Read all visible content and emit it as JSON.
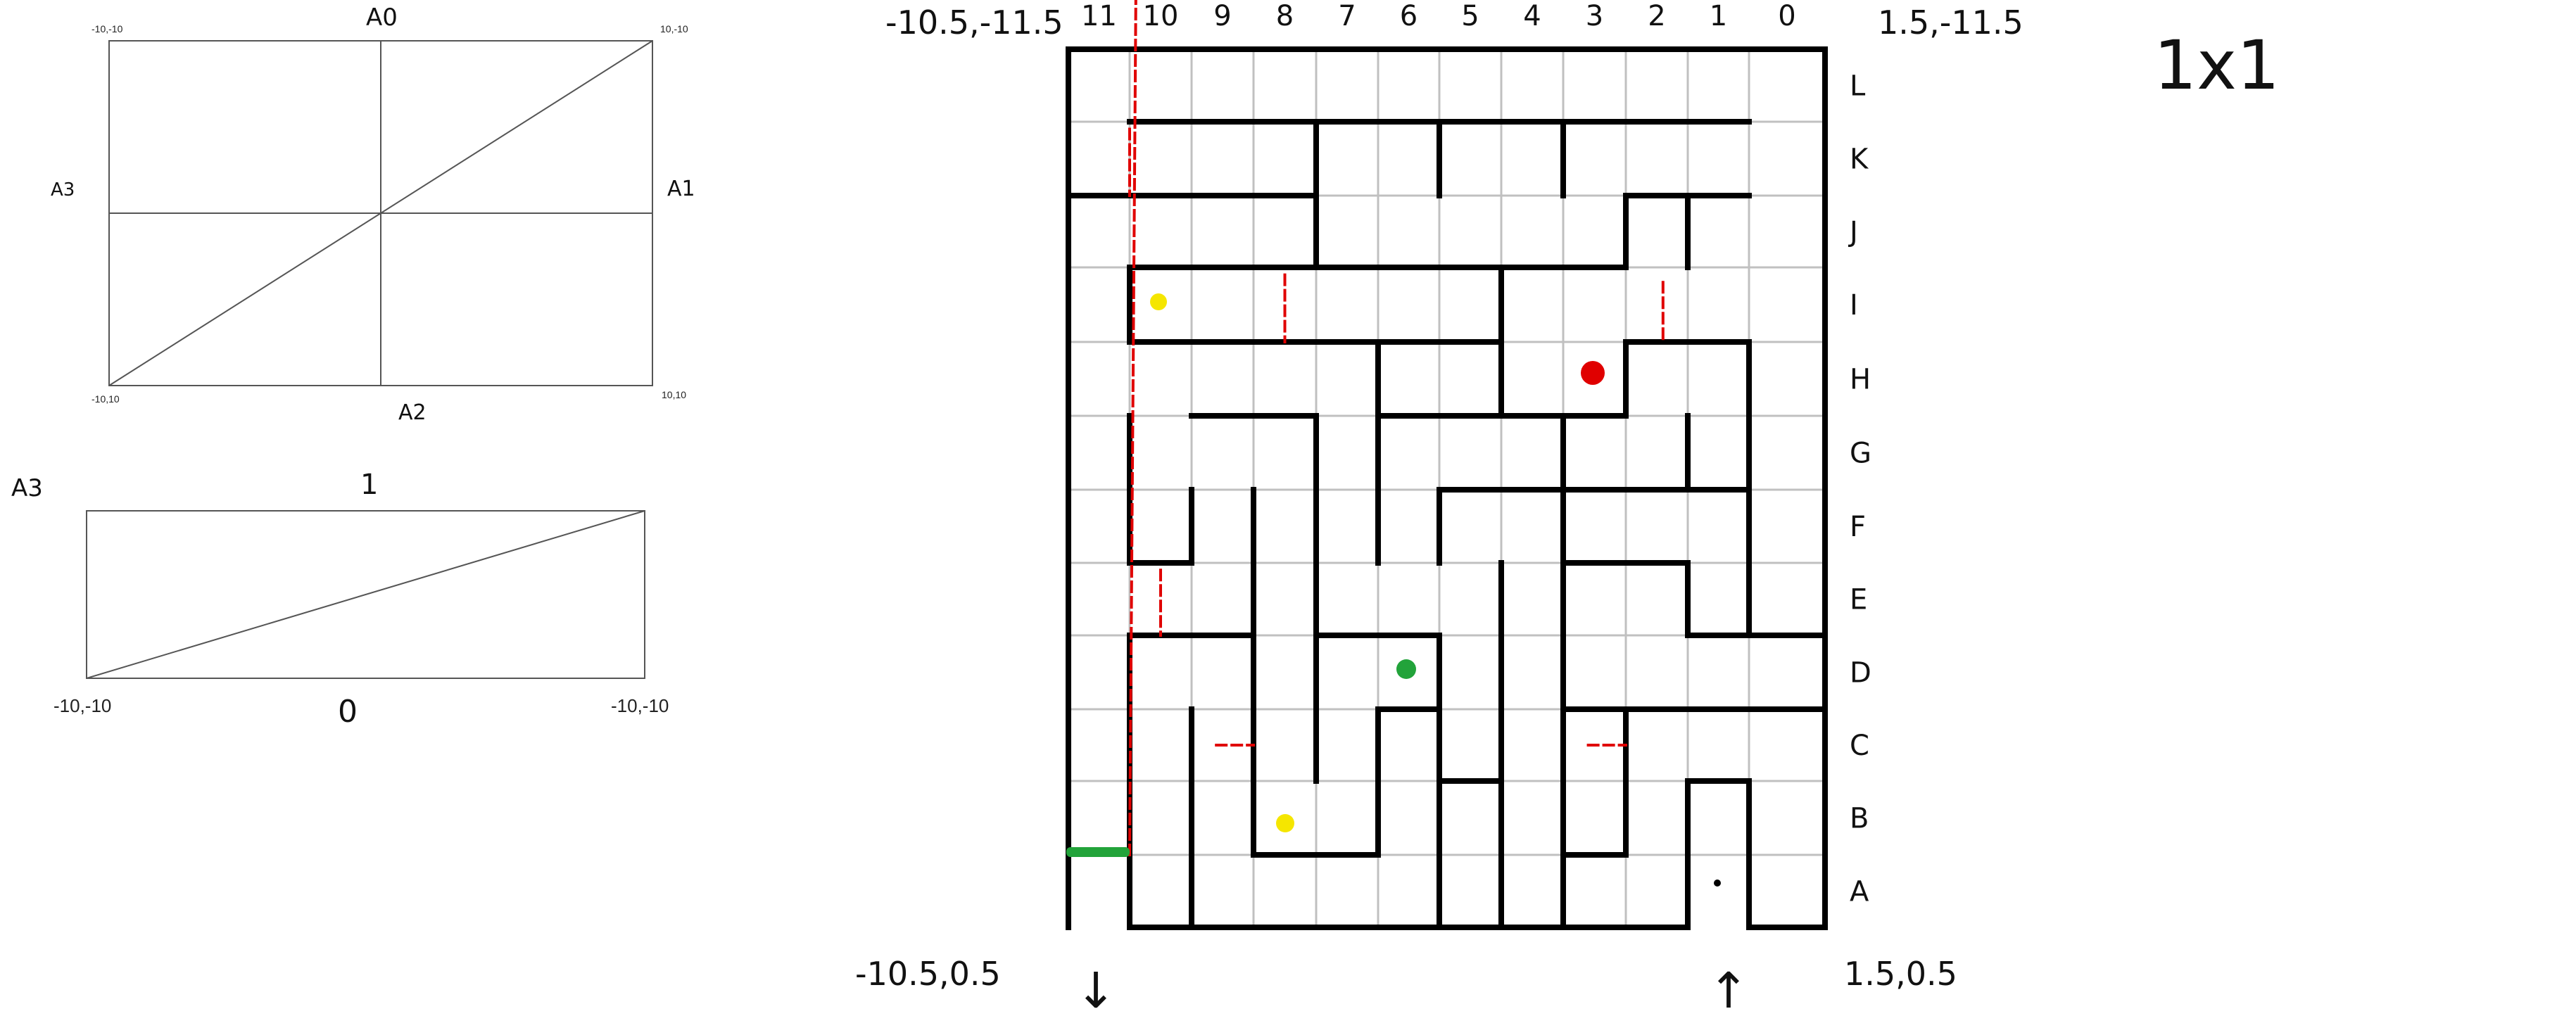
{
  "tl_diagram": {
    "top": "A0",
    "right": "A1",
    "bottom": "A2",
    "left": "A3",
    "corner_tl": "-10,-10",
    "corner_tr": "10,-10",
    "corner_bl": "-10,10",
    "corner_br": "10,10"
  },
  "bl_diagram": {
    "side": "A3",
    "top": "1",
    "bottom": "0",
    "corner_bl": "-10,-10",
    "corner_br": "-10,-10"
  },
  "maze": {
    "corner_tl": "-10.5,-11.5",
    "corner_tr": "1.5,-11.5",
    "corner_bl": "-10.5,0.5",
    "corner_br": "1.5,0.5",
    "columns": [
      "11",
      "10",
      "9",
      "8",
      "7",
      "6",
      "5",
      "4",
      "3",
      "2",
      "1",
      "0"
    ],
    "rows": [
      "L",
      "K",
      "J",
      "I",
      "H",
      "G",
      "F",
      "E",
      "D",
      "C",
      "B",
      "A"
    ],
    "entry_arrow": "↓",
    "exit_arrow": "↑"
  },
  "scale_label": "1x1",
  "colors": {
    "wall": "#000000",
    "grid": "#c0c0c0",
    "dash": "#e00000",
    "yellow_dot": "#f5e600",
    "red_dot": "#e00000",
    "green_mark": "#22a33a"
  }
}
